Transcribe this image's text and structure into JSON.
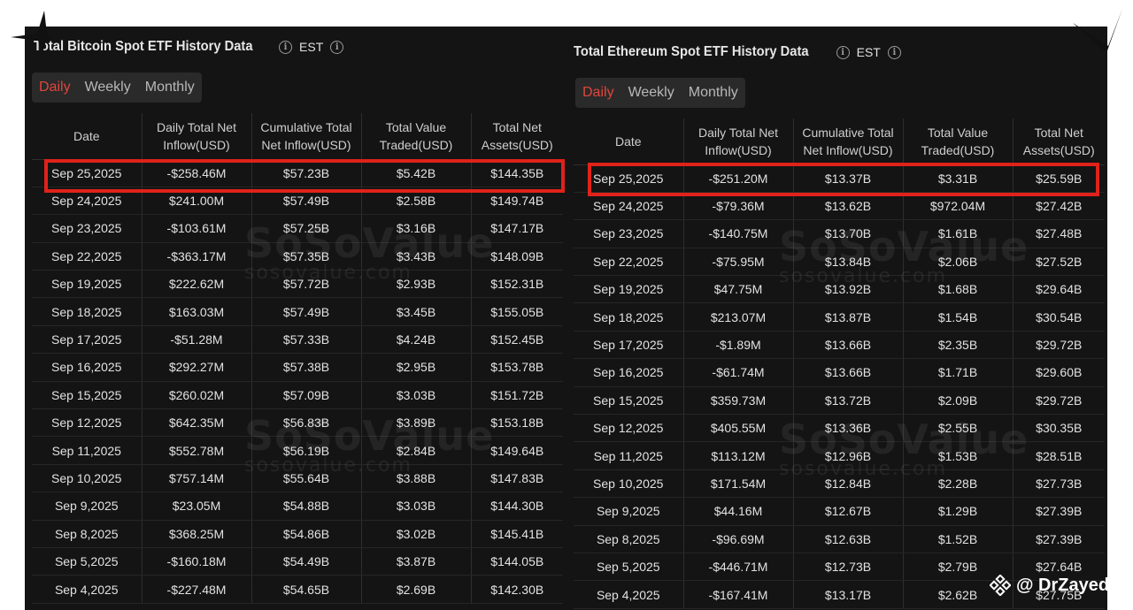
{
  "btc": {
    "title": "Total Bitcoin Spot ETF History Data",
    "tz": "EST",
    "tabs": [
      "Daily",
      "Weekly",
      "Monthly"
    ],
    "columns": [
      "Date",
      "Daily Total Net Inflow(USD)",
      "Cumulative Total Net Inflow(USD)",
      "Total Value Traded(USD)",
      "Total Net Assets(USD)"
    ],
    "rows": [
      {
        "date": "Sep 25,2025",
        "inflow": "-$258.46M",
        "cumulative": "$57.23B",
        "traded": "$5.42B",
        "assets": "$144.35B",
        "sign": "neg"
      },
      {
        "date": "Sep 24,2025",
        "inflow": "$241.00M",
        "cumulative": "$57.49B",
        "traded": "$2.58B",
        "assets": "$149.74B",
        "sign": "pos"
      },
      {
        "date": "Sep 23,2025",
        "inflow": "-$103.61M",
        "cumulative": "$57.25B",
        "traded": "$3.16B",
        "assets": "$147.17B",
        "sign": "neg"
      },
      {
        "date": "Sep 22,2025",
        "inflow": "-$363.17M",
        "cumulative": "$57.35B",
        "traded": "$3.43B",
        "assets": "$148.09B",
        "sign": "neg"
      },
      {
        "date": "Sep 19,2025",
        "inflow": "$222.62M",
        "cumulative": "$57.72B",
        "traded": "$2.93B",
        "assets": "$152.31B",
        "sign": "pos"
      },
      {
        "date": "Sep 18,2025",
        "inflow": "$163.03M",
        "cumulative": "$57.49B",
        "traded": "$3.45B",
        "assets": "$155.05B",
        "sign": "pos"
      },
      {
        "date": "Sep 17,2025",
        "inflow": "-$51.28M",
        "cumulative": "$57.33B",
        "traded": "$4.24B",
        "assets": "$152.45B",
        "sign": "neg"
      },
      {
        "date": "Sep 16,2025",
        "inflow": "$292.27M",
        "cumulative": "$57.38B",
        "traded": "$2.95B",
        "assets": "$153.78B",
        "sign": "pos"
      },
      {
        "date": "Sep 15,2025",
        "inflow": "$260.02M",
        "cumulative": "$57.09B",
        "traded": "$3.03B",
        "assets": "$151.72B",
        "sign": "pos"
      },
      {
        "date": "Sep 12,2025",
        "inflow": "$642.35M",
        "cumulative": "$56.83B",
        "traded": "$3.89B",
        "assets": "$153.18B",
        "sign": "pos"
      },
      {
        "date": "Sep 11,2025",
        "inflow": "$552.78M",
        "cumulative": "$56.19B",
        "traded": "$2.84B",
        "assets": "$149.64B",
        "sign": "pos"
      },
      {
        "date": "Sep 10,2025",
        "inflow": "$757.14M",
        "cumulative": "$55.64B",
        "traded": "$3.88B",
        "assets": "$147.83B",
        "sign": "pos"
      },
      {
        "date": "Sep 9,2025",
        "inflow": "$23.05M",
        "cumulative": "$54.88B",
        "traded": "$3.03B",
        "assets": "$144.30B",
        "sign": "pos"
      },
      {
        "date": "Sep 8,2025",
        "inflow": "$368.25M",
        "cumulative": "$54.86B",
        "traded": "$3.02B",
        "assets": "$145.41B",
        "sign": "pos"
      },
      {
        "date": "Sep 5,2025",
        "inflow": "-$160.18M",
        "cumulative": "$54.49B",
        "traded": "$3.87B",
        "assets": "$144.05B",
        "sign": "neg"
      },
      {
        "date": "Sep 4,2025",
        "inflow": "-$227.48M",
        "cumulative": "$54.65B",
        "traded": "$2.69B",
        "assets": "$142.30B",
        "sign": "neg"
      }
    ]
  },
  "eth": {
    "title": "Total Ethereum Spot ETF History Data",
    "tz": "EST",
    "tabs": [
      "Daily",
      "Weekly",
      "Monthly"
    ],
    "columns": [
      "Date",
      "Daily Total Net Inflow(USD)",
      "Cumulative Total Net Inflow(USD)",
      "Total Value Traded(USD)",
      "Total Net Assets(USD)"
    ],
    "rows": [
      {
        "date": "Sep 25,2025",
        "inflow": "-$251.20M",
        "cumulative": "$13.37B",
        "traded": "$3.31B",
        "assets": "$25.59B",
        "sign": "neg"
      },
      {
        "date": "Sep 24,2025",
        "inflow": "-$79.36M",
        "cumulative": "$13.62B",
        "traded": "$972.04M",
        "assets": "$27.42B",
        "sign": "neg"
      },
      {
        "date": "Sep 23,2025",
        "inflow": "-$140.75M",
        "cumulative": "$13.70B",
        "traded": "$1.61B",
        "assets": "$27.48B",
        "sign": "neg"
      },
      {
        "date": "Sep 22,2025",
        "inflow": "-$75.95M",
        "cumulative": "$13.84B",
        "traded": "$2.06B",
        "assets": "$27.52B",
        "sign": "neg"
      },
      {
        "date": "Sep 19,2025",
        "inflow": "$47.75M",
        "cumulative": "$13.92B",
        "traded": "$1.68B",
        "assets": "$29.64B",
        "sign": "pos"
      },
      {
        "date": "Sep 18,2025",
        "inflow": "$213.07M",
        "cumulative": "$13.87B",
        "traded": "$1.54B",
        "assets": "$30.54B",
        "sign": "pos"
      },
      {
        "date": "Sep 17,2025",
        "inflow": "-$1.89M",
        "cumulative": "$13.66B",
        "traded": "$2.35B",
        "assets": "$29.72B",
        "sign": "neg"
      },
      {
        "date": "Sep 16,2025",
        "inflow": "-$61.74M",
        "cumulative": "$13.66B",
        "traded": "$1.71B",
        "assets": "$29.60B",
        "sign": "neg"
      },
      {
        "date": "Sep 15,2025",
        "inflow": "$359.73M",
        "cumulative": "$13.72B",
        "traded": "$2.09B",
        "assets": "$29.72B",
        "sign": "pos"
      },
      {
        "date": "Sep 12,2025",
        "inflow": "$405.55M",
        "cumulative": "$13.36B",
        "traded": "$2.55B",
        "assets": "$30.35B",
        "sign": "pos"
      },
      {
        "date": "Sep 11,2025",
        "inflow": "$113.12M",
        "cumulative": "$12.96B",
        "traded": "$1.53B",
        "assets": "$28.51B",
        "sign": "pos"
      },
      {
        "date": "Sep 10,2025",
        "inflow": "$171.54M",
        "cumulative": "$12.84B",
        "traded": "$2.28B",
        "assets": "$27.73B",
        "sign": "pos"
      },
      {
        "date": "Sep 9,2025",
        "inflow": "$44.16M",
        "cumulative": "$12.67B",
        "traded": "$1.29B",
        "assets": "$27.39B",
        "sign": "pos"
      },
      {
        "date": "Sep 8,2025",
        "inflow": "-$96.69M",
        "cumulative": "$12.63B",
        "traded": "$1.52B",
        "assets": "$27.39B",
        "sign": "neg"
      },
      {
        "date": "Sep 5,2025",
        "inflow": "-$446.71M",
        "cumulative": "$12.73B",
        "traded": "$2.79B",
        "assets": "$27.64B",
        "sign": "neg"
      },
      {
        "date": "Sep 4,2025",
        "inflow": "-$167.41M",
        "cumulative": "$13.17B",
        "traded": "$2.62B",
        "assets": "$27.75B",
        "sign": "neg"
      }
    ]
  },
  "watermark": {
    "brand": "SoSoValue",
    "site": "sosovalue.com"
  },
  "credit": {
    "handle": "@ DrZayed",
    "icon": "binance-logo-icon"
  },
  "colors": {
    "negative": "#e0463c",
    "positive": "#6fc08a",
    "highlight": "#e0221a",
    "panel": "#141414"
  }
}
